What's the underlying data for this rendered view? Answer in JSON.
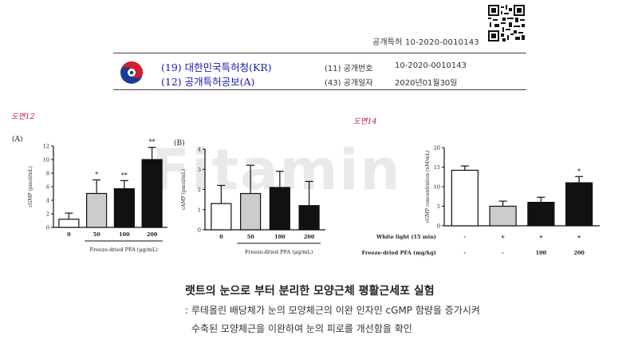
{
  "header": {
    "publication_number": "공개특허 10-2020-0010143",
    "office": "(19) 대한민국특허청(KR)",
    "doc_type": "(12) 공개특허공보(A)",
    "app_no_label": "(11) 공개번호",
    "app_no_value": "10-2020-0010143",
    "date_label": "(43) 공개일자",
    "date_value": "2020년01월30일"
  },
  "watermark": "Fitamin",
  "figures": {
    "fig12_label": "도면12",
    "fig14_label": "도면14"
  },
  "caption": {
    "title": "랫트의 눈으로 부터 분리한 모양근체 평활근세포 실험",
    "line1": ": 루테올린 배당체가 눈의 모양체근의 이완 인자인 cGMP 함량을 증가시켜",
    "line2": "수축된 모양체근을 이완하여 눈의 피로를 개선함을 확인"
  },
  "chart_data": [
    {
      "type": "bar",
      "panel": "(A)",
      "categories": [
        "0",
        "50",
        "100",
        "200"
      ],
      "values": [
        1.2,
        5.0,
        5.7,
        10.0
      ],
      "errors": [
        0.9,
        2.0,
        1.2,
        1.8
      ],
      "significance": [
        "",
        "*",
        "**",
        "**"
      ],
      "bar_colors": [
        "#ffffff",
        "#cccccc",
        "#111111",
        "#111111"
      ],
      "ylabel": "cGMP (pmol/mL)",
      "xlabel": "Freeze-dried PFA (μg/mL)",
      "ylim": [
        0,
        12
      ],
      "yticks": [
        "0",
        "2",
        "4",
        "6",
        "8",
        "10",
        "12"
      ]
    },
    {
      "type": "bar",
      "panel": "(B)",
      "categories": [
        "0",
        "50",
        "100",
        "200"
      ],
      "values": [
        1.3,
        1.8,
        2.1,
        1.2
      ],
      "errors": [
        0.9,
        1.4,
        0.8,
        1.2
      ],
      "significance": [
        "",
        "",
        "",
        ""
      ],
      "bar_colors": [
        "#ffffff",
        "#cccccc",
        "#111111",
        "#111111"
      ],
      "ylabel": "cAMP (pmol/mL)",
      "xlabel": "Freeze-dried PFA (μg/mL)",
      "ylim": [
        0,
        4
      ],
      "yticks": [
        "0",
        "1",
        "2",
        "3",
        "4"
      ]
    },
    {
      "type": "bar",
      "panel": "",
      "categories": [
        "",
        "",
        "",
        ""
      ],
      "values": [
        14.2,
        5.0,
        6.0,
        11.0
      ],
      "errors": [
        1.1,
        1.3,
        1.3,
        1.6
      ],
      "significance": [
        "",
        "",
        "",
        "*"
      ],
      "bar_colors": [
        "#ffffff",
        "#cccccc",
        "#111111",
        "#111111"
      ],
      "ylabel": "cGMP concentration (nM/mL)",
      "ylim": [
        0,
        20
      ],
      "yticks": [
        "0",
        "5",
        "10",
        "15",
        "20"
      ],
      "row_labels": [
        "White light (15 min)",
        "Freeze-dried PFA (mg/kg)"
      ],
      "row_values": [
        [
          "-",
          "+",
          "+",
          "+"
        ],
        [
          "-",
          "-",
          "100",
          "200"
        ]
      ]
    }
  ]
}
